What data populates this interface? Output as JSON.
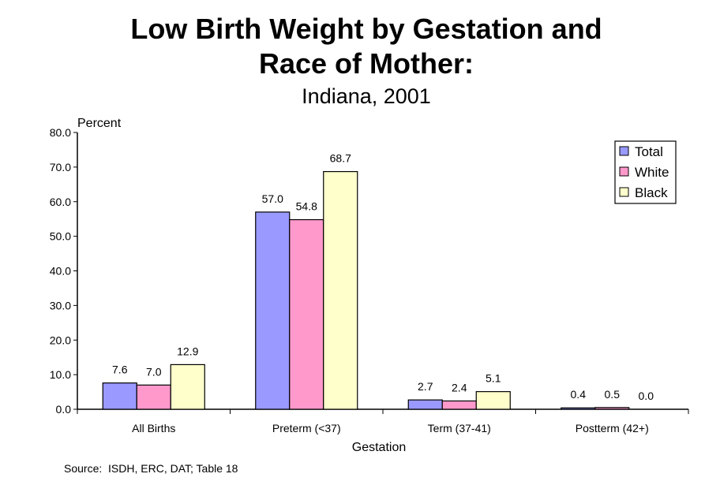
{
  "chart_data": {
    "type": "bar",
    "title": "Low Birth Weight by Gestation and Race of Mother:",
    "subtitle": "Indiana, 2001",
    "xlabel": "Gestation",
    "ylabel": "Percent",
    "ylim": [
      0,
      80
    ],
    "yticks": [
      "0.0",
      "10.0",
      "20.0",
      "30.0",
      "40.0",
      "50.0",
      "60.0",
      "70.0",
      "80.0"
    ],
    "categories": [
      "All Births",
      "Preterm (<37)",
      "Term (37-41)",
      "Postterm (42+)"
    ],
    "series": [
      {
        "name": "Total",
        "color": "#9999FF",
        "values": [
          7.6,
          57.0,
          2.7,
          0.4
        ],
        "labels": [
          "7.6",
          "57.0",
          "2.7",
          "0.4"
        ]
      },
      {
        "name": "White",
        "color": "#FF99CC",
        "values": [
          7.0,
          54.8,
          2.4,
          0.5
        ],
        "labels": [
          "7.0",
          "54.8",
          "2.4",
          "0.5"
        ]
      },
      {
        "name": "Black",
        "color": "#FFFFCC",
        "values": [
          12.9,
          68.7,
          5.1,
          0.0
        ],
        "labels": [
          "12.9",
          "68.7",
          "5.1",
          "0.0"
        ]
      }
    ],
    "legend_position": "top-right",
    "grid": false,
    "source": "Source:  ISDH, ERC, DAT; Table 18"
  }
}
